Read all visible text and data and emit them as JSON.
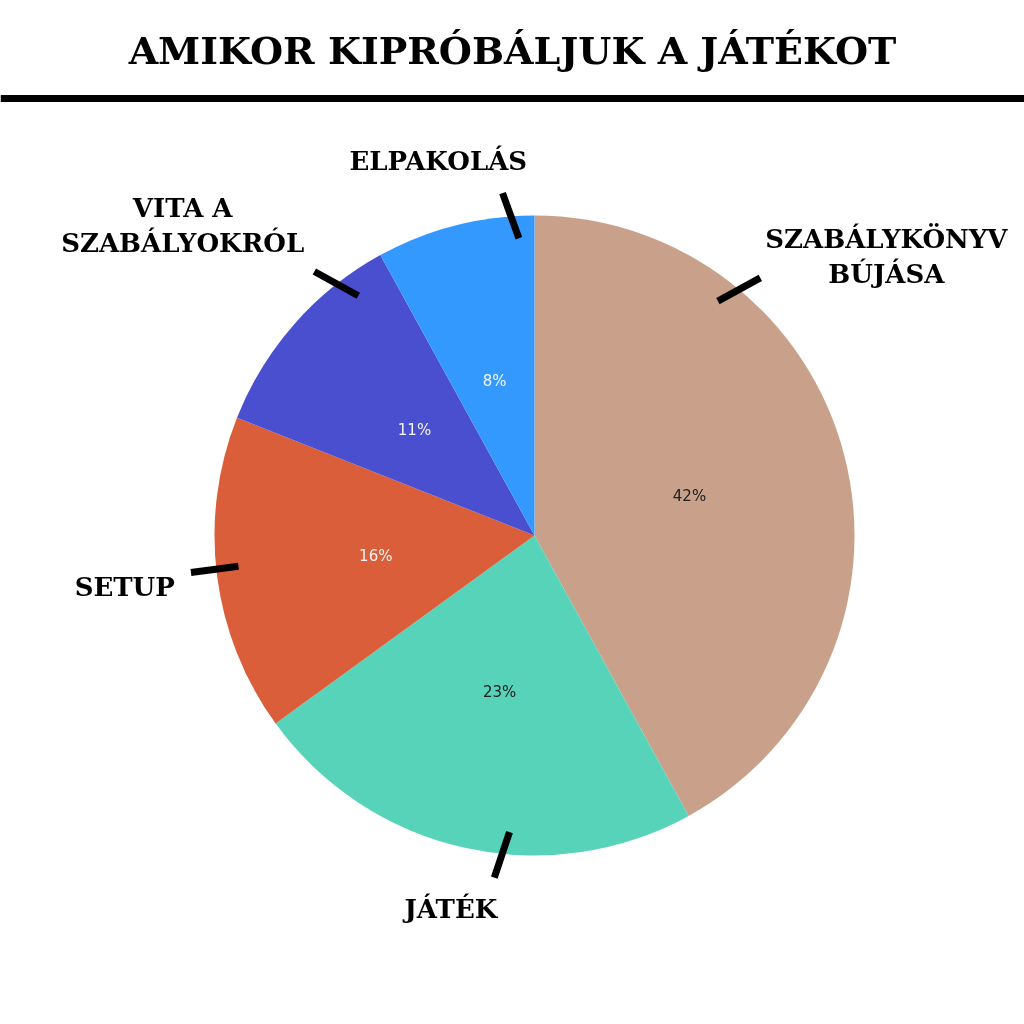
{
  "chart_data": {
    "type": "pie",
    "title": "AMIKOR KIPRÓBÁLJUK A JÁTÉKOT",
    "categories": [
      "SZABÁLYKÖNYV\nBÚJÁSA",
      "JÁTÉK",
      "SETUP",
      "VITA A\nSZABÁLYOKRÓL",
      "ELPAKOLÁS"
    ],
    "values": [
      42,
      23,
      16,
      11,
      8
    ],
    "colors": [
      "#c9a18b",
      "#57d3b9",
      "#da5e3a",
      "#4a4fcf",
      "#3399fe"
    ],
    "value_labels": [
      "42%",
      "23%",
      "16%",
      "11%",
      "8%"
    ]
  }
}
